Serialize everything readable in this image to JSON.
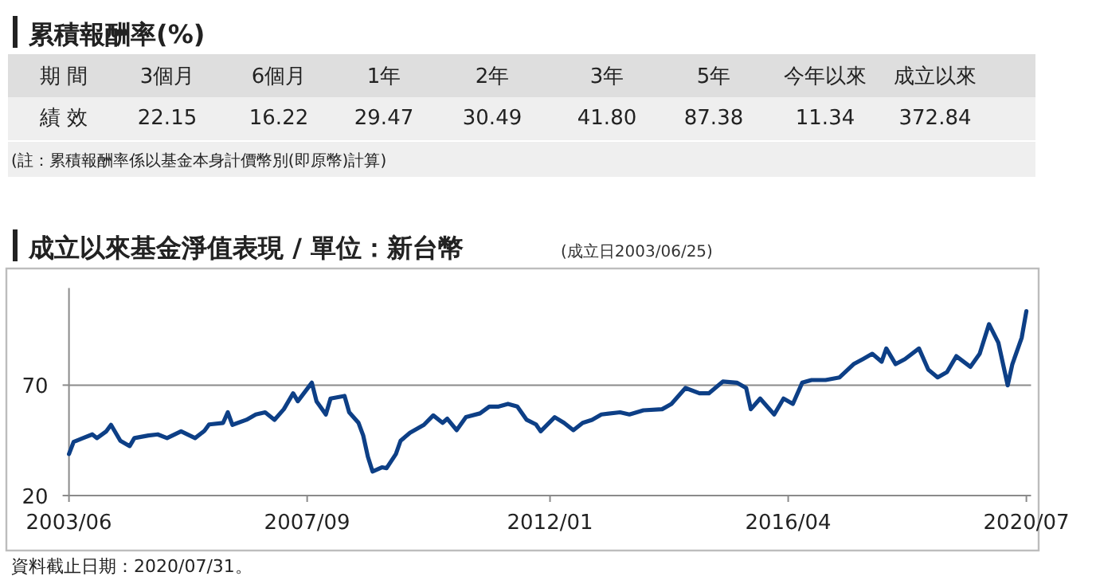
{
  "chart_data": [
    {
      "type": "other",
      "title": "累積報酬率(%)",
      "xlabel": "期 間",
      "ylabel": "績 效",
      "categories": [
        "3個月",
        "6個月",
        "1年",
        "2年",
        "3年",
        "5年",
        "今年以來",
        "成立以來"
      ],
      "values": [
        22.15,
        16.22,
        29.47,
        30.49,
        41.8,
        87.38,
        11.34,
        372.84
      ],
      "value_labels": [
        "22.15",
        "16.22",
        "29.47",
        "30.49",
        "41.80",
        "87.38",
        "11.34",
        "372.84"
      ],
      "annotations": [
        "(註：累積報酬率係以基金本身計價幣別(即原幣)計算)"
      ]
    },
    {
      "type": "line",
      "title": "成立以來基金淨值表現 / 單位：新台幣",
      "subtitle": "(成立日2003/06/25)",
      "x": [
        "2003-06",
        "2003-07",
        "2003-09",
        "2003-11",
        "2003-12",
        "2004-02",
        "2004-03",
        "2004-04",
        "2004-05",
        "2004-07",
        "2004-08",
        "2004-11",
        "2005-01",
        "2005-03",
        "2005-06",
        "2005-09",
        "2005-11",
        "2005-12",
        "2006-03",
        "2006-04",
        "2006-05",
        "2006-08",
        "2006-10",
        "2006-12",
        "2007-02",
        "2007-04",
        "2007-06",
        "2007-07",
        "2007-10",
        "2007-11",
        "2008-01",
        "2008-02",
        "2008-05",
        "2008-06",
        "2008-08",
        "2008-09",
        "2008-10",
        "2008-11",
        "2009-01",
        "2009-02",
        "2009-04",
        "2009-05",
        "2009-07",
        "2009-10",
        "2009-12",
        "2010-02",
        "2010-03",
        "2010-05",
        "2010-07",
        "2010-10",
        "2010-12",
        "2011-02",
        "2011-04",
        "2011-06",
        "2011-08",
        "2011-10",
        "2011-11",
        "2012-02",
        "2012-04",
        "2012-06",
        "2012-08",
        "2012-10",
        "2012-12",
        "2013-04",
        "2013-06",
        "2013-09",
        "2014-01",
        "2014-03",
        "2014-06",
        "2014-09",
        "2014-11",
        "2015-02",
        "2015-05",
        "2015-07",
        "2015-08",
        "2015-10",
        "2016-01",
        "2016-03",
        "2016-05",
        "2016-07",
        "2016-09",
        "2016-12",
        "2017-03",
        "2017-06",
        "2017-08",
        "2017-10",
        "2017-12",
        "2018-01",
        "2018-03",
        "2018-05",
        "2018-08",
        "2018-10",
        "2018-12",
        "2019-02",
        "2019-04",
        "2019-07",
        "2019-09",
        "2019-11",
        "2020-01",
        "2020-03",
        "2020-04",
        "2020-06",
        "2020-07"
      ],
      "values": [
        38.8,
        44.3,
        46.0,
        47.7,
        46.0,
        49.1,
        52.0,
        48.4,
        44.8,
        42.4,
        46.0,
        47.2,
        47.7,
        46.0,
        49.1,
        46.0,
        49.3,
        52.2,
        52.9,
        57.7,
        52.0,
        54.3,
        56.7,
        57.7,
        54.3,
        59.1,
        66.3,
        62.7,
        71.1,
        62.7,
        56.7,
        63.9,
        65.1,
        57.7,
        52.9,
        47.2,
        37.6,
        30.9,
        32.8,
        32.4,
        38.8,
        44.8,
        48.4,
        52.0,
        56.3,
        52.9,
        54.8,
        49.6,
        55.5,
        57.2,
        60.3,
        60.3,
        61.5,
        60.3,
        54.3,
        52.2,
        49.1,
        55.5,
        52.9,
        49.6,
        52.9,
        54.3,
        56.7,
        57.7,
        56.7,
        58.6,
        59.1,
        61.5,
        68.7,
        66.3,
        66.3,
        71.6,
        71.1,
        68.7,
        59.1,
        63.9,
        56.7,
        63.9,
        61.5,
        71.1,
        72.3,
        72.3,
        73.5,
        79.5,
        81.8,
        84.2,
        80.6,
        86.6,
        79.5,
        81.8,
        86.6,
        77.0,
        73.5,
        75.9,
        83.1,
        78.3,
        84.2,
        97.6,
        89.2,
        69.9,
        79.5,
        91.5,
        103.5
      ],
      "color": "#0d3f86",
      "line_style": "solid",
      "marker": "none",
      "xlim": [
        "2003-06",
        "2020-08"
      ],
      "ylim": [
        20,
        114
      ],
      "xticks": [
        {
          "value": "2003-06",
          "label": "2003/06"
        },
        {
          "value": "2007-09",
          "label": "2007/09"
        },
        {
          "value": "2012-01",
          "label": "2012/01"
        },
        {
          "value": "2016-04",
          "label": "2016/04"
        },
        {
          "value": "2020-07",
          "label": "2020/07"
        }
      ],
      "yticks": [
        20,
        70
      ],
      "grid": "y",
      "annotations": [
        "資料截止日期：2020/07/31。"
      ]
    }
  ]
}
